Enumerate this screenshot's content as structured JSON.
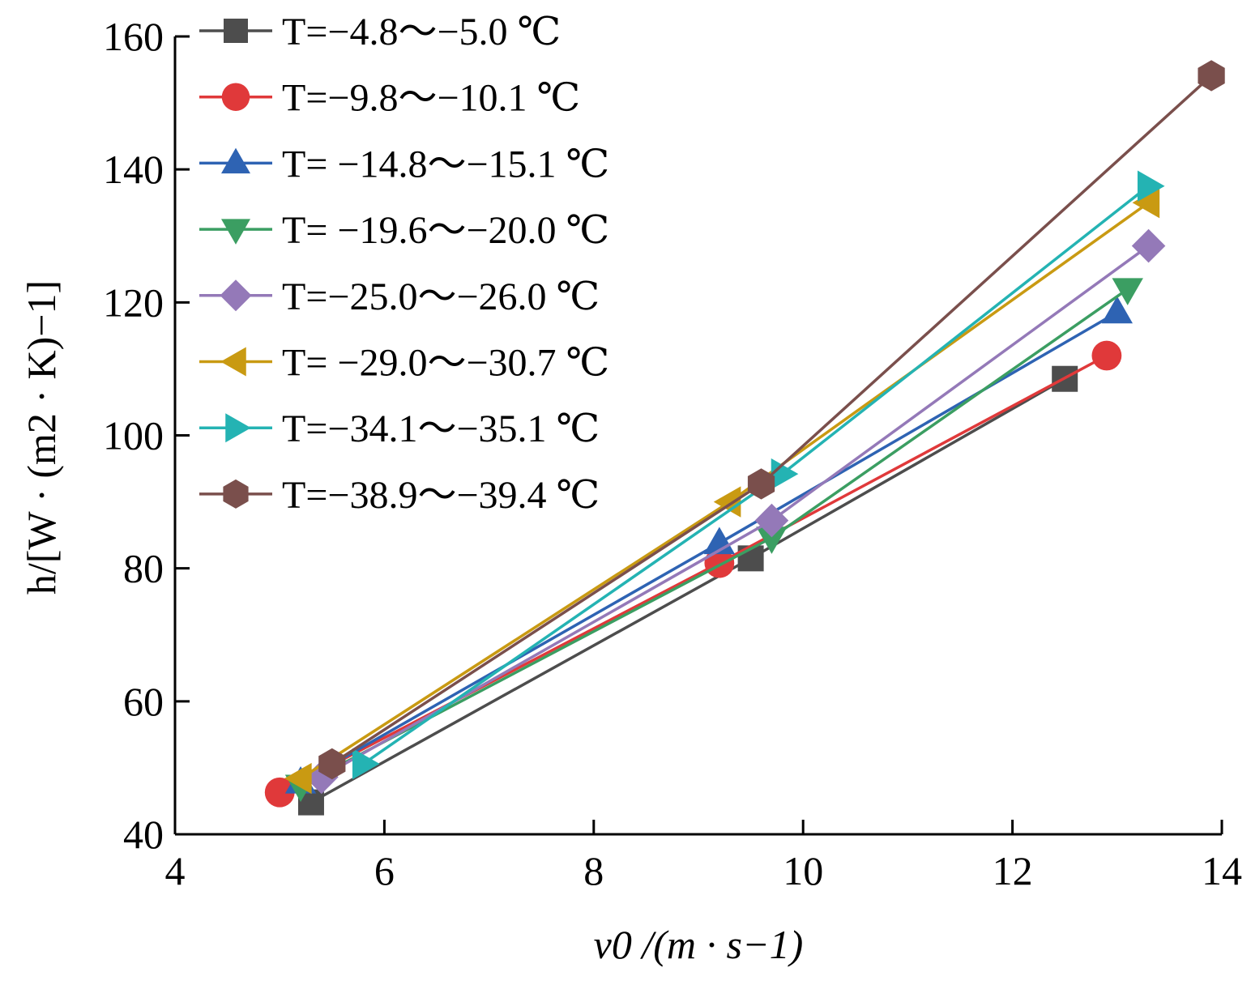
{
  "chart_data": {
    "type": "line",
    "title": "",
    "xlabel": "v0 /(m · s−1)",
    "ylabel": "h/[W · (m2 · K)−1]",
    "xlim": [
      4,
      14
    ],
    "ylim": [
      40,
      160
    ],
    "xticks": [
      4,
      6,
      8,
      10,
      12,
      14
    ],
    "yticks": [
      40,
      60,
      80,
      100,
      120,
      140,
      160
    ],
    "grid": false,
    "legend_position": "top-left",
    "series": [
      {
        "name": "T=−4.8～−5.0 ℃",
        "color": "#4d4d4d",
        "marker": "square",
        "x": [
          5.3,
          9.5,
          12.5
        ],
        "y": [
          44.8,
          81.5,
          108.5
        ]
      },
      {
        "name": "T=−9.8～−10.1 ℃",
        "color": "#e0393a",
        "marker": "circle",
        "x": [
          5.0,
          9.2,
          12.9
        ],
        "y": [
          46.3,
          80.8,
          112.0
        ]
      },
      {
        "name": "T= −14.8～−15.1 ℃",
        "color": "#2e63b3",
        "marker": "triangle-up",
        "x": [
          5.2,
          9.2,
          13.0
        ],
        "y": [
          47.8,
          83.8,
          118.5
        ]
      },
      {
        "name": "T= −19.6～−20.0 ℃",
        "color": "#3b9e62",
        "marker": "triangle-down",
        "x": [
          5.2,
          9.7,
          13.1
        ],
        "y": [
          47.3,
          84.6,
          122.0
        ]
      },
      {
        "name": "T=−25.0～−26.0 ℃",
        "color": "#9479b8",
        "marker": "diamond",
        "x": [
          5.4,
          9.7,
          13.3
        ],
        "y": [
          48.6,
          87.2,
          128.5
        ]
      },
      {
        "name": "T= −29.0～−30.7 ℃",
        "color": "#c99a12",
        "marker": "triangle-left",
        "x": [
          5.2,
          9.3,
          13.3
        ],
        "y": [
          48.4,
          90.0,
          135.0
        ]
      },
      {
        "name": "T=−34.1～−35.1 ℃",
        "color": "#24b3b3",
        "marker": "triangle-right",
        "x": [
          5.8,
          9.8,
          13.3
        ],
        "y": [
          50.6,
          94.2,
          137.5
        ]
      },
      {
        "name": "T=−38.9～−39.4 ℃",
        "color": "#7a4f4c",
        "marker": "hexagon",
        "x": [
          5.5,
          9.6,
          13.9
        ],
        "y": [
          50.6,
          92.7,
          154.1
        ]
      }
    ]
  }
}
